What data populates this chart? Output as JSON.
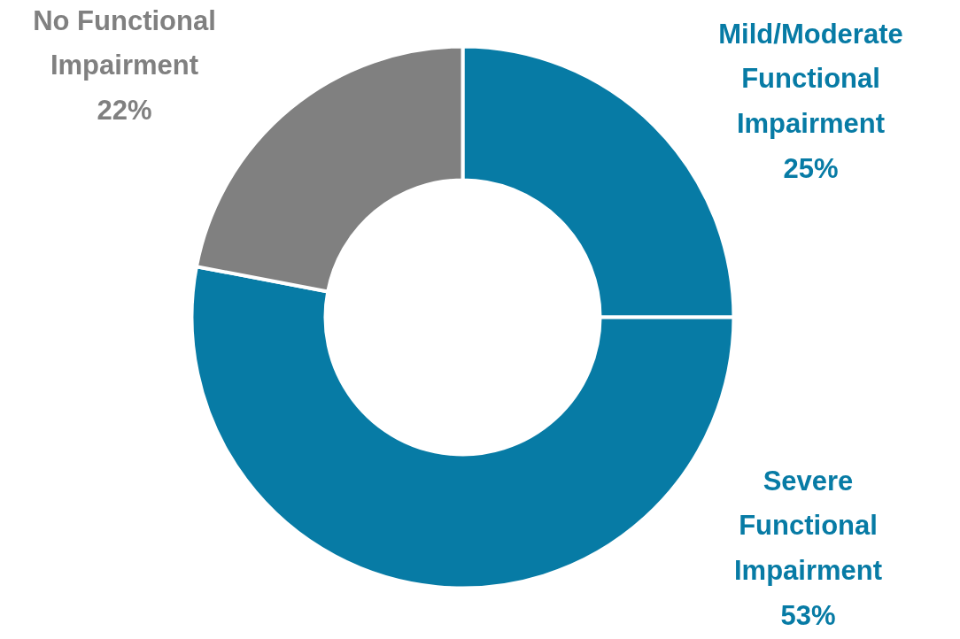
{
  "chart_data": {
    "type": "donut",
    "categories": [
      "Mild/Moderate Functional Impairment",
      "Severe Functional Impairment",
      "No Functional Impairment"
    ],
    "values": [
      25,
      53,
      22
    ],
    "colors": [
      "#077ba5",
      "#077ba5",
      "#808080"
    ],
    "value_labels": [
      "25%",
      "53%",
      "22%"
    ]
  }
}
